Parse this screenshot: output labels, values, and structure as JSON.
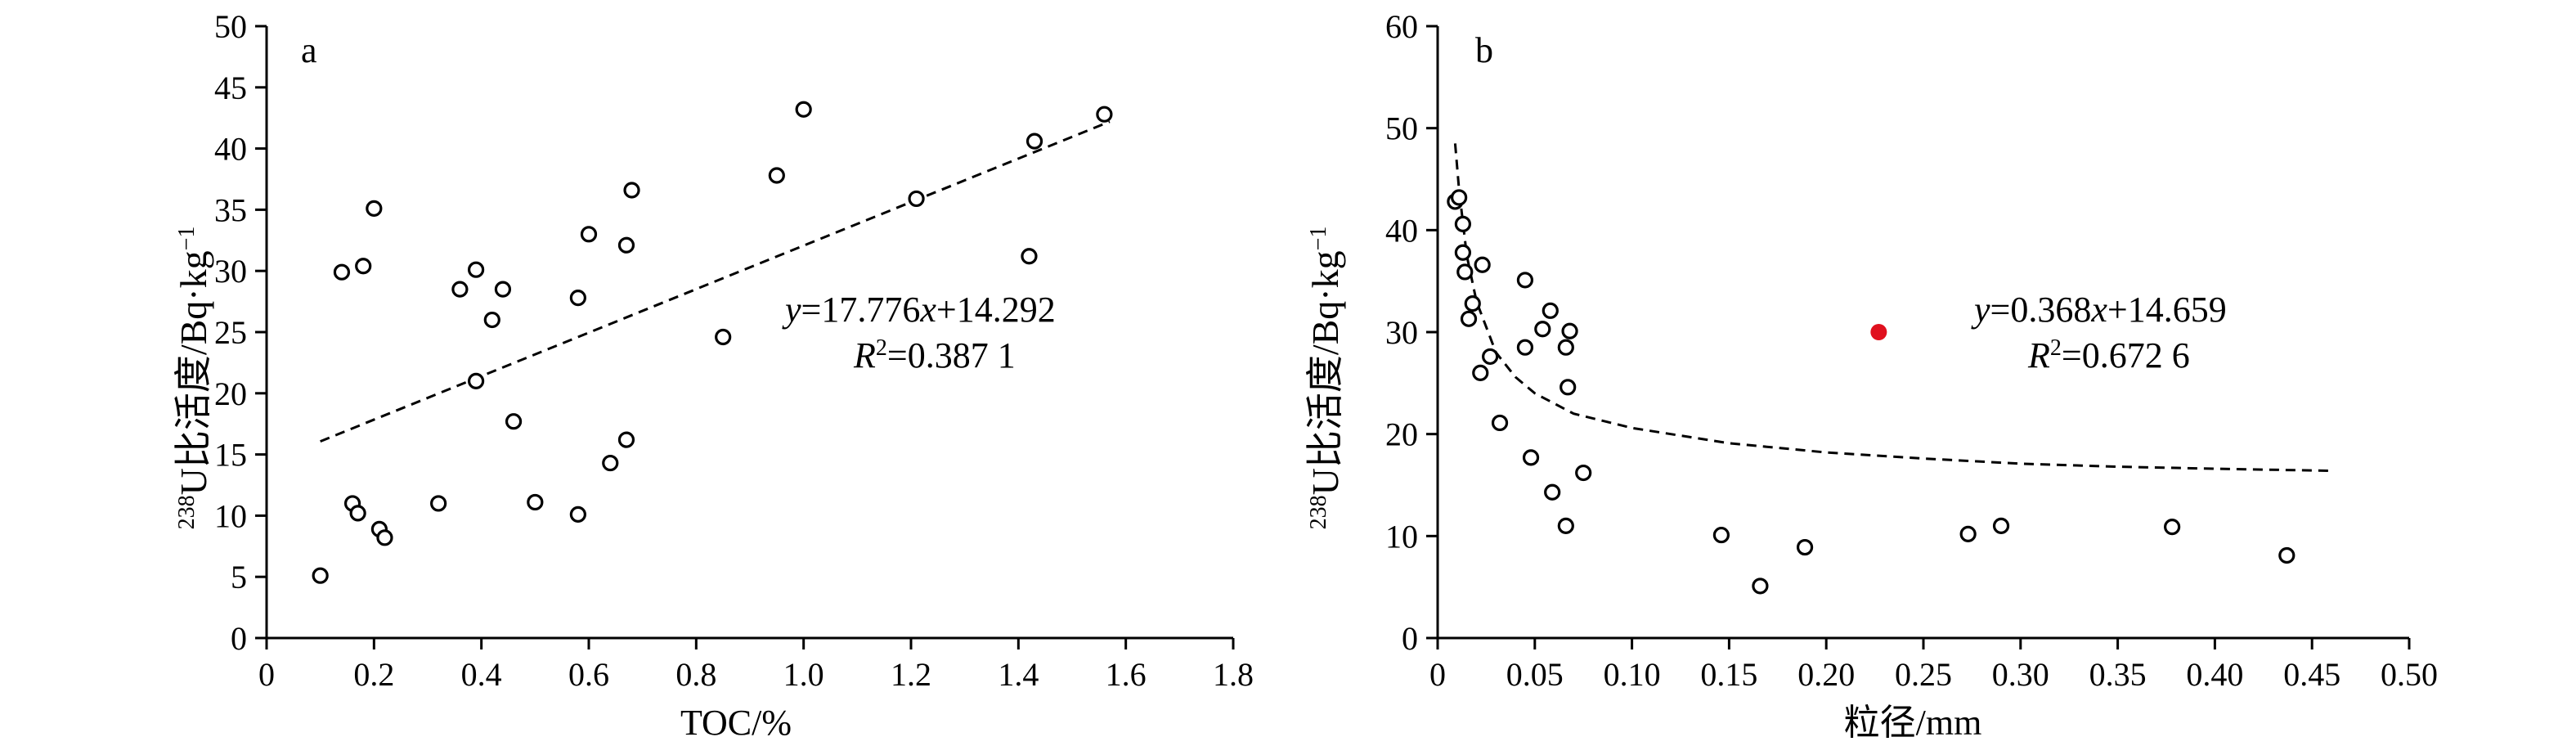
{
  "chart_data": [
    {
      "type": "scatter",
      "panel_label": "a",
      "xlabel": "TOC/%",
      "ylabel_sup": "238",
      "ylabel_main": "U比活度/Bq·kg",
      "ylabel_exp": "−1",
      "xlim": [
        0,
        1.8
      ],
      "ylim": [
        0,
        50
      ],
      "xticks": [
        0,
        0.2,
        0.4,
        0.6,
        0.8,
        1.0,
        1.2,
        1.4,
        1.6,
        1.8
      ],
      "xtick_labels": [
        "0",
        "0.2",
        "0.4",
        "0.6",
        "0.8",
        "1.0",
        "1.2",
        "1.4",
        "1.6",
        "1.8"
      ],
      "yticks": [
        0,
        5,
        10,
        15,
        20,
        25,
        30,
        35,
        40,
        45,
        50
      ],
      "ytick_labels": [
        "0",
        "5",
        "10",
        "15",
        "20",
        "25",
        "30",
        "35",
        "40",
        "45",
        "50"
      ],
      "points": [
        [
          0.1,
          5.1
        ],
        [
          0.16,
          11.0
        ],
        [
          0.17,
          10.2
        ],
        [
          0.21,
          8.9
        ],
        [
          0.22,
          8.2
        ],
        [
          0.14,
          29.9
        ],
        [
          0.18,
          30.4
        ],
        [
          0.2,
          35.1
        ],
        [
          0.32,
          11.0
        ],
        [
          0.36,
          28.5
        ],
        [
          0.39,
          30.1
        ],
        [
          0.39,
          21.0
        ],
        [
          0.42,
          26.0
        ],
        [
          0.44,
          28.5
        ],
        [
          0.46,
          17.7
        ],
        [
          0.5,
          11.1
        ],
        [
          0.58,
          10.1
        ],
        [
          0.58,
          27.8
        ],
        [
          0.6,
          33.0
        ],
        [
          0.64,
          14.3
        ],
        [
          0.67,
          32.1
        ],
        [
          0.67,
          16.2
        ],
        [
          0.68,
          36.6
        ],
        [
          0.85,
          24.6
        ],
        [
          0.95,
          37.8
        ],
        [
          1.0,
          43.2
        ],
        [
          1.21,
          35.9
        ],
        [
          1.42,
          31.2
        ],
        [
          1.43,
          40.6
        ],
        [
          1.56,
          42.8
        ]
      ],
      "fit": {
        "kind": "linear",
        "slope": 17.776,
        "intercept": 14.292,
        "x_range": [
          0.1,
          1.57
        ]
      },
      "equation": {
        "var": "y",
        "rest": "=17.776",
        "x": "x",
        "tail": "+14.292"
      },
      "r2": {
        "R": "R",
        "sup": "2",
        "tail": "=0.387 1"
      }
    },
    {
      "type": "scatter",
      "panel_label": "b",
      "xlabel": "粒径/mm",
      "ylabel_sup": "238",
      "ylabel_main": "U比活度/Bq·kg",
      "ylabel_exp": "−1",
      "xlim": [
        0,
        0.5
      ],
      "ylim": [
        0,
        60
      ],
      "xticks": [
        0,
        0.05,
        0.1,
        0.15,
        0.2,
        0.25,
        0.3,
        0.35,
        0.4,
        0.45,
        0.5
      ],
      "xtick_labels": [
        "0",
        "0.05",
        "0.10",
        "0.15",
        "0.20",
        "0.25",
        "0.30",
        "0.35",
        "0.40",
        "0.45",
        "0.50"
      ],
      "yticks": [
        0,
        10,
        20,
        30,
        40,
        50,
        60
      ],
      "ytick_labels": [
        "0",
        "10",
        "20",
        "30",
        "40",
        "50",
        "60"
      ],
      "points": [
        [
          0.009,
          42.8
        ],
        [
          0.011,
          43.2
        ],
        [
          0.013,
          40.6
        ],
        [
          0.013,
          37.8
        ],
        [
          0.014,
          35.9
        ],
        [
          0.016,
          31.3
        ],
        [
          0.018,
          32.8
        ],
        [
          0.022,
          26.0
        ],
        [
          0.023,
          36.6
        ],
        [
          0.027,
          27.6
        ],
        [
          0.032,
          21.1
        ],
        [
          0.045,
          35.1
        ],
        [
          0.045,
          28.5
        ],
        [
          0.048,
          17.7
        ],
        [
          0.054,
          30.3
        ],
        [
          0.058,
          32.1
        ],
        [
          0.059,
          14.3
        ],
        [
          0.066,
          28.5
        ],
        [
          0.067,
          24.6
        ],
        [
          0.068,
          30.1
        ],
        [
          0.066,
          11.0
        ],
        [
          0.075,
          16.2
        ],
        [
          0.146,
          10.1
        ],
        [
          0.166,
          5.1
        ],
        [
          0.189,
          8.9
        ],
        [
          0.273,
          10.2
        ],
        [
          0.29,
          11.0
        ],
        [
          0.378,
          10.9
        ],
        [
          0.437,
          8.1
        ]
      ],
      "highlight_point": {
        "x": 0.227,
        "y": 30.0,
        "color": "#e0101e"
      },
      "fit": {
        "kind": "power",
        "x_range": [
          0.009,
          0.46
        ],
        "samples": [
          [
            0.009,
            48.5
          ],
          [
            0.011,
            44.0
          ],
          [
            0.015,
            37.5
          ],
          [
            0.02,
            33.0
          ],
          [
            0.03,
            28.0
          ],
          [
            0.04,
            25.6
          ],
          [
            0.05,
            24.0
          ],
          [
            0.07,
            22.0
          ],
          [
            0.1,
            20.6
          ],
          [
            0.15,
            19.1
          ],
          [
            0.2,
            18.2
          ],
          [
            0.25,
            17.6
          ],
          [
            0.3,
            17.1
          ],
          [
            0.35,
            16.8
          ],
          [
            0.4,
            16.6
          ],
          [
            0.46,
            16.4
          ]
        ]
      },
      "equation": {
        "var": "y",
        "rest": "=0.368",
        "x": "x",
        "tail": "+14.659"
      },
      "r2": {
        "R": "R",
        "sup": "2",
        "tail": "=0.672 6"
      }
    }
  ]
}
